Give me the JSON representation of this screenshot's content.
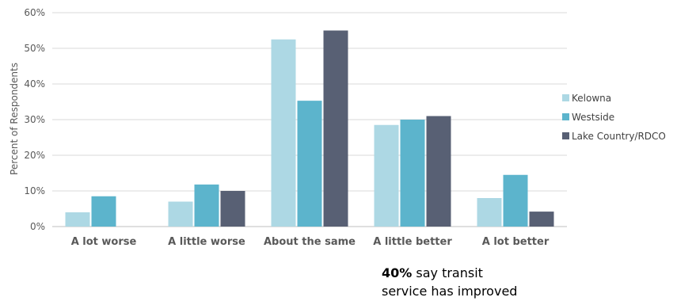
{
  "chart_data": {
    "type": "bar",
    "categories": [
      "A lot worse",
      "A little worse",
      "About the same",
      "A little better",
      "A lot better"
    ],
    "series": [
      {
        "name": "Kelowna",
        "color": "#add8e4",
        "values": [
          4,
          7,
          52.5,
          28.5,
          8
        ]
      },
      {
        "name": "Westside",
        "color": "#5cb4cc",
        "values": [
          8.5,
          11.8,
          35.3,
          30,
          14.5
        ]
      },
      {
        "name": "Lake Country/RDCO",
        "color": "#586074",
        "values": [
          0,
          10,
          55,
          31,
          4.2
        ]
      }
    ],
    "ylabel": "Percent of Respondents",
    "ylim": [
      0,
      60
    ],
    "yticks": [
      0,
      10,
      20,
      30,
      40,
      50,
      60
    ],
    "ytick_suffix": "%",
    "grid": true,
    "legend_position": "right"
  },
  "annotation": {
    "highlight": "40%",
    "line1_rest": " say transit",
    "line2": "service has improved"
  }
}
